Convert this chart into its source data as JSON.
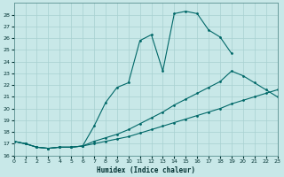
{
  "xlabel": "Humidex (Indice chaleur)",
  "bg_color": "#c8e8e8",
  "grid_color": "#a8d0d0",
  "line_color": "#006868",
  "line1_x": [
    0,
    1,
    2,
    3,
    4,
    5,
    6,
    7,
    8,
    9,
    10,
    11,
    12,
    13,
    14,
    15,
    16,
    17,
    18,
    19
  ],
  "line1_y": [
    17.2,
    17.0,
    16.7,
    16.6,
    16.7,
    16.7,
    16.8,
    18.5,
    20.5,
    21.8,
    22.2,
    25.8,
    26.3,
    23.2,
    28.1,
    28.3,
    28.1,
    26.7,
    26.1,
    24.7
  ],
  "line2_x": [
    0,
    1,
    2,
    3,
    4,
    5,
    6,
    7,
    8,
    9,
    10,
    11,
    12,
    13,
    14,
    15,
    16,
    17,
    18,
    19,
    20,
    21,
    22,
    23
  ],
  "line2_y": [
    17.2,
    17.0,
    16.7,
    16.6,
    16.7,
    16.7,
    16.8,
    17.2,
    17.5,
    17.8,
    18.2,
    18.7,
    19.2,
    19.7,
    20.3,
    20.8,
    21.3,
    21.8,
    22.3,
    23.2,
    22.8,
    22.2,
    21.6,
    21.0
  ],
  "line3_x": [
    0,
    1,
    2,
    3,
    4,
    5,
    6,
    7,
    8,
    9,
    10,
    11,
    12,
    13,
    14,
    15,
    16,
    17,
    18,
    19,
    20,
    21,
    22,
    23
  ],
  "line3_y": [
    17.2,
    17.0,
    16.7,
    16.6,
    16.7,
    16.7,
    16.8,
    17.0,
    17.2,
    17.4,
    17.6,
    17.9,
    18.2,
    18.5,
    18.8,
    19.1,
    19.4,
    19.7,
    20.0,
    20.4,
    20.7,
    21.0,
    21.3,
    21.6
  ],
  "xlim": [
    0,
    23
  ],
  "ylim": [
    16,
    29
  ],
  "yticks": [
    16,
    17,
    18,
    19,
    20,
    21,
    22,
    23,
    24,
    25,
    26,
    27,
    28
  ],
  "xticks": [
    0,
    1,
    2,
    3,
    4,
    5,
    6,
    7,
    8,
    9,
    10,
    11,
    12,
    13,
    14,
    15,
    16,
    17,
    18,
    19,
    20,
    21,
    22,
    23
  ]
}
